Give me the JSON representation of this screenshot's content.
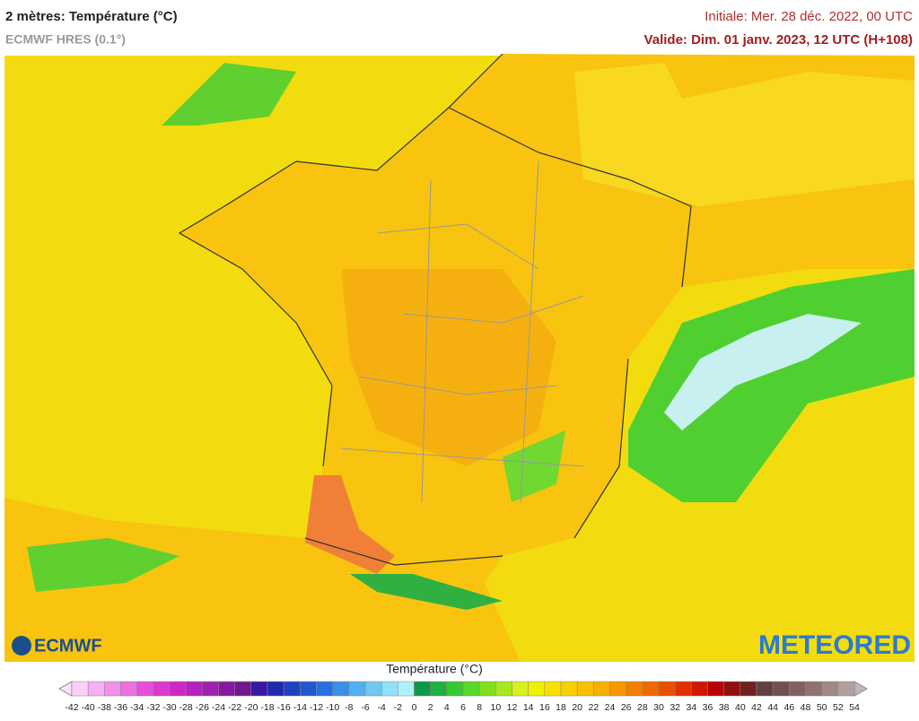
{
  "header": {
    "title": "2 mètres: Température (°C)",
    "subtitle": "ECMWF HRES (0.1°)",
    "initial": "Initiale: Mer. 28 déc. 2022, 00 UTC",
    "valid": "Valide: Dim. 01 janv. 2023, 12 UTC (H+108)"
  },
  "logos": {
    "left": "ECMWF",
    "right": "METEORED"
  },
  "legend": {
    "title": "Température (°C)",
    "ticks": [
      -42,
      -40,
      -38,
      -36,
      -34,
      -32,
      -30,
      -28,
      -26,
      -24,
      -22,
      -20,
      -18,
      -16,
      -14,
      -12,
      -10,
      -8,
      -6,
      -4,
      -2,
      0,
      2,
      4,
      6,
      8,
      10,
      12,
      14,
      16,
      18,
      20,
      22,
      24,
      26,
      28,
      30,
      32,
      34,
      36,
      38,
      40,
      42,
      44,
      46,
      48,
      50,
      52,
      54
    ],
    "colors": [
      "#f8d0f8",
      "#f4b0f0",
      "#f090e8",
      "#ec70e0",
      "#e450d8",
      "#dc38d0",
      "#cc28c8",
      "#b820c0",
      "#a020b0",
      "#8818a0",
      "#701890",
      "#3818a0",
      "#2028b0",
      "#2040c0",
      "#2058d0",
      "#2870e0",
      "#3890e8",
      "#50b0f0",
      "#70c8f0",
      "#90e0f8",
      "#b0f0f8",
      "#109848",
      "#20b040",
      "#38c830",
      "#58d828",
      "#80e020",
      "#a8e820",
      "#d8f020",
      "#f0f000",
      "#f8e000",
      "#f8d000",
      "#f8c000",
      "#f8b000",
      "#f89800",
      "#f08000",
      "#f06800",
      "#e85000",
      "#e03000",
      "#d01800",
      "#b80000",
      "#901010",
      "#702020",
      "#604040",
      "#705050",
      "#806060",
      "#907070",
      "#a08888",
      "#b0a0a0"
    ]
  }
}
